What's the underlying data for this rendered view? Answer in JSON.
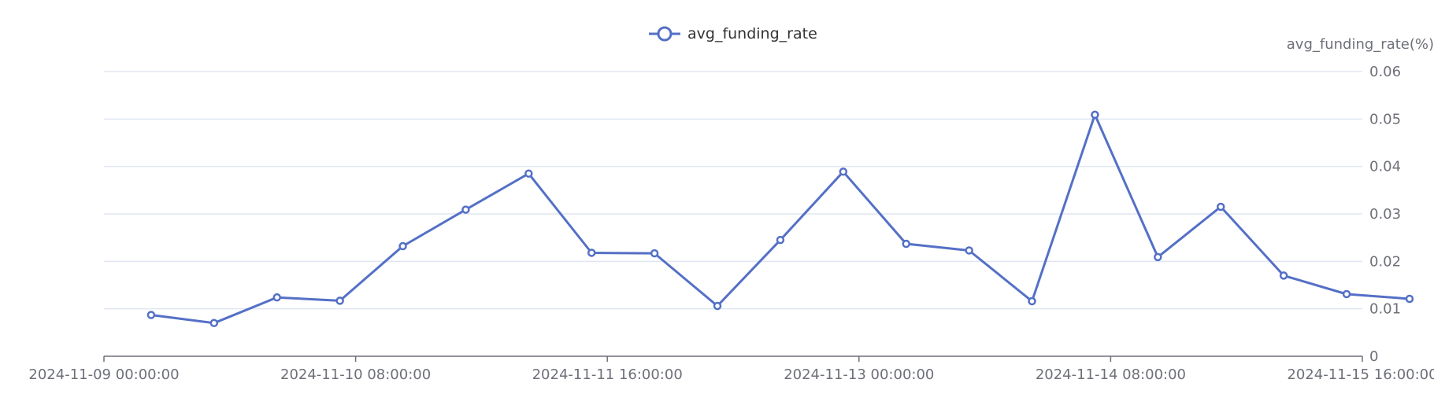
{
  "chart_data": {
    "type": "line",
    "title": "",
    "legend": {
      "position": "top-center",
      "entries": [
        "avg_funding_rate"
      ]
    },
    "y_axis": {
      "name": "avg_funding_rate(%)",
      "position": "right",
      "min": 0,
      "max": 0.06,
      "ticks": [
        0,
        0.01,
        0.02,
        0.03,
        0.04,
        0.05,
        0.06
      ],
      "tick_labels": [
        "0",
        "0.01",
        "0.02",
        "0.03",
        "0.04",
        "0.05",
        "0.06"
      ],
      "grid": true
    },
    "x_axis": {
      "type": "time",
      "min": "2024-11-09 00:00:00",
      "max": "2024-11-15 16:00:00",
      "tick_labels": [
        "2024-11-09 00:00:00",
        "2024-11-10 08:00:00",
        "2024-11-11 16:00:00",
        "2024-11-13 00:00:00",
        "2024-11-14 08:00:00",
        "2024-11-15 16:00:00"
      ]
    },
    "series": [
      {
        "name": "avg_funding_rate",
        "color": "#5470c6",
        "x": [
          "2024-11-09 06:00:00",
          "2024-11-09 14:00:00",
          "2024-11-09 22:00:00",
          "2024-11-10 06:00:00",
          "2024-11-10 14:00:00",
          "2024-11-10 22:00:00",
          "2024-11-11 06:00:00",
          "2024-11-11 14:00:00",
          "2024-11-11 22:00:00",
          "2024-11-12 06:00:00",
          "2024-11-12 14:00:00",
          "2024-11-12 22:00:00",
          "2024-11-13 06:00:00",
          "2024-11-13 14:00:00",
          "2024-11-13 22:00:00",
          "2024-11-14 06:00:00",
          "2024-11-14 14:00:00",
          "2024-11-14 22:00:00",
          "2024-11-15 06:00:00",
          "2024-11-15 14:00:00",
          "2024-11-15 22:00:00"
        ],
        "values": [
          0.0087,
          0.007,
          0.0124,
          0.0117,
          0.0232,
          0.0309,
          0.0385,
          0.0218,
          0.0217,
          0.0106,
          0.0245,
          0.0389,
          0.0237,
          0.0223,
          0.0116,
          0.0509,
          0.0209,
          0.0315,
          0.017,
          0.0131,
          0.0121
        ]
      }
    ]
  }
}
